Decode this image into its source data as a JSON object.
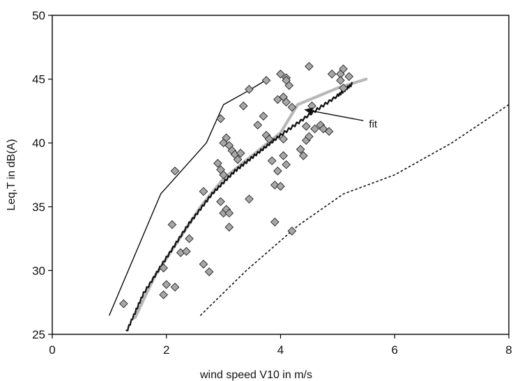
{
  "chart_data": {
    "type": "scatter",
    "title": "",
    "xlabel": "wind speed V10 in m/s",
    "ylabel": "Leq,T in dB(A)",
    "xlim": [
      0,
      8
    ],
    "ylim": [
      25,
      50
    ],
    "x_ticks": [
      0,
      2,
      4,
      6,
      8
    ],
    "y_ticks": [
      25,
      30,
      35,
      40,
      45,
      50
    ],
    "grid": false,
    "legend": "none",
    "series": [
      {
        "type": "scatter",
        "marker": "diamond",
        "color": "#a7a7a7",
        "points": [
          [
            1.25,
            27.4
          ],
          [
            1.95,
            28.1
          ],
          [
            2.0,
            28.9
          ],
          [
            2.15,
            28.7
          ],
          [
            1.95,
            30.2
          ],
          [
            2.25,
            31.4
          ],
          [
            2.35,
            31.5
          ],
          [
            2.4,
            32.5
          ],
          [
            2.1,
            33.6
          ],
          [
            2.15,
            37.8
          ],
          [
            2.65,
            36.2
          ],
          [
            2.65,
            30.5
          ],
          [
            2.75,
            29.9
          ],
          [
            2.9,
            38.4
          ],
          [
            2.95,
            37.9
          ],
          [
            3.0,
            37.5
          ],
          [
            2.95,
            41.9
          ],
          [
            2.95,
            35.4
          ],
          [
            3.0,
            34.5
          ],
          [
            3.05,
            34.8
          ],
          [
            3.1,
            34.5
          ],
          [
            3.1,
            33.4
          ],
          [
            3.0,
            40.0
          ],
          [
            3.05,
            40.4
          ],
          [
            3.1,
            39.8
          ],
          [
            3.15,
            39.4
          ],
          [
            3.2,
            39.1
          ],
          [
            3.25,
            38.7
          ],
          [
            3.3,
            39.2
          ],
          [
            3.35,
            42.9
          ],
          [
            3.45,
            44.2
          ],
          [
            3.45,
            35.6
          ],
          [
            3.6,
            41.4
          ],
          [
            3.75,
            44.9
          ],
          [
            3.7,
            42.1
          ],
          [
            3.75,
            40.6
          ],
          [
            3.8,
            40.3
          ],
          [
            3.85,
            38.6
          ],
          [
            3.95,
            37.8
          ],
          [
            3.9,
            36.7
          ],
          [
            4.0,
            36.6
          ],
          [
            3.9,
            33.8
          ],
          [
            3.95,
            43.4
          ],
          [
            4.0,
            45.4
          ],
          [
            4.1,
            45.1
          ],
          [
            4.1,
            44.9
          ],
          [
            4.05,
            43.6
          ],
          [
            4.1,
            43.2
          ],
          [
            4.2,
            42.8
          ],
          [
            4.15,
            44.5
          ],
          [
            4.05,
            39.0
          ],
          [
            4.05,
            40.3
          ],
          [
            4.1,
            38.3
          ],
          [
            4.2,
            33.1
          ],
          [
            4.35,
            39.5
          ],
          [
            4.4,
            39.0
          ],
          [
            4.45,
            41.3
          ],
          [
            4.45,
            40.2
          ],
          [
            4.5,
            40.5
          ],
          [
            4.5,
            46.0
          ],
          [
            4.55,
            42.9
          ],
          [
            4.6,
            41.1
          ],
          [
            4.7,
            41.4
          ],
          [
            4.75,
            41.1
          ],
          [
            4.85,
            40.9
          ],
          [
            4.9,
            45.4
          ],
          [
            5.05,
            45.4
          ],
          [
            5.05,
            44.9
          ],
          [
            5.1,
            45.8
          ],
          [
            5.1,
            44.3
          ],
          [
            5.2,
            45.2
          ]
        ]
      },
      {
        "type": "line",
        "style": "thin-solid",
        "color": "#000000",
        "points": [
          [
            1.0,
            26.5
          ],
          [
            1.9,
            36.0
          ],
          [
            2.3,
            38.0
          ],
          [
            2.7,
            40.0
          ],
          [
            3.0,
            43.0
          ],
          [
            3.4,
            44.0
          ],
          [
            3.7,
            44.8
          ]
        ]
      },
      {
        "type": "line",
        "style": "thick-gray",
        "color": "#b8b8b8",
        "points": [
          [
            1.45,
            26.3
          ],
          [
            1.8,
            29.6
          ],
          [
            2.2,
            32.3
          ],
          [
            2.6,
            35.0
          ],
          [
            3.0,
            37.2
          ],
          [
            3.5,
            39.0
          ],
          [
            4.0,
            40.8
          ],
          [
            4.3,
            43.0
          ],
          [
            5.0,
            44.3
          ],
          [
            5.5,
            45.0
          ]
        ]
      },
      {
        "type": "line",
        "style": "dashed-black-fit",
        "color": "#111111",
        "points": [
          [
            1.3,
            25.2
          ],
          [
            1.6,
            28.2
          ],
          [
            2.0,
            31.0
          ],
          [
            2.4,
            33.7
          ],
          [
            2.8,
            36.0
          ],
          [
            3.2,
            37.8
          ],
          [
            3.6,
            39.2
          ],
          [
            4.0,
            40.6
          ],
          [
            4.5,
            42.2
          ],
          [
            5.0,
            43.7
          ],
          [
            5.25,
            44.6
          ]
        ]
      },
      {
        "type": "line",
        "style": "dotted-black",
        "color": "#111111",
        "points": [
          [
            2.6,
            26.5
          ],
          [
            3.4,
            30.0
          ],
          [
            4.3,
            33.5
          ],
          [
            5.1,
            36.0
          ],
          [
            6.0,
            37.5
          ],
          [
            7.0,
            40.0
          ],
          [
            8.0,
            43.0
          ]
        ]
      }
    ],
    "annotations": [
      {
        "text": "fit",
        "text_x": 5.55,
        "text_y": 41.2,
        "arrow_to_x": 4.4,
        "arrow_to_y": 42.6
      }
    ]
  }
}
